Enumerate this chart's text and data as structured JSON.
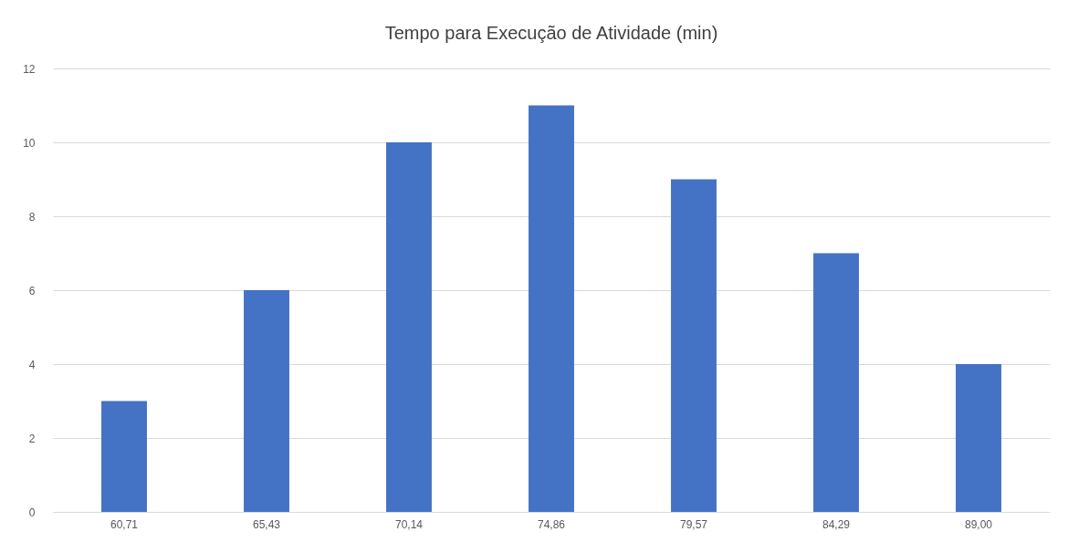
{
  "chart_data": {
    "type": "bar",
    "title": "Tempo  para Execução de Atividade (min)",
    "categories": [
      "60,71",
      "65,43",
      "70,14",
      "74,86",
      "79,57",
      "84,29",
      "89,00"
    ],
    "values": [
      3,
      6,
      10,
      11,
      9,
      7,
      4
    ],
    "color": "#4472c4",
    "ylim": [
      0,
      12
    ],
    "yticks": [
      0,
      2,
      4,
      6,
      8,
      10,
      12
    ],
    "grid": "y"
  }
}
